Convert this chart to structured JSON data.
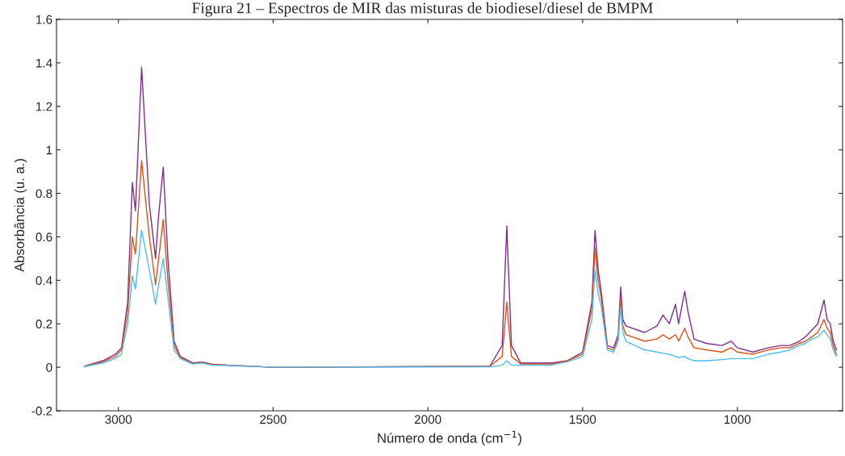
{
  "chart_data": {
    "type": "line",
    "title": "Figura 21 – Espectros de MIR das misturas de biodiesel/diesel de BMPM",
    "xlabel": "Número de onda (cm$^{−1}$)",
    "ylabel": "Absorbância (u. a.)",
    "x": [
      3110,
      3050,
      3010,
      2990,
      2970,
      2955,
      2945,
      2925,
      2900,
      2880,
      2870,
      2855,
      2840,
      2820,
      2800,
      2760,
      2730,
      2700,
      2650,
      2500,
      1800,
      1760,
      1745,
      1730,
      1700,
      1600,
      1550,
      1500,
      1470,
      1460,
      1450,
      1440,
      1420,
      1400,
      1385,
      1377,
      1370,
      1360,
      1300,
      1260,
      1240,
      1220,
      1200,
      1190,
      1170,
      1160,
      1140,
      1100,
      1050,
      1020,
      1000,
      950,
      900,
      860,
      830,
      800,
      780,
      760,
      740,
      720,
      710,
      700,
      690,
      680
    ],
    "series": [
      {
        "color": "#7e2f8e",
        "values": [
          0.005,
          0.03,
          0.06,
          0.09,
          0.3,
          0.85,
          0.72,
          1.38,
          0.75,
          0.5,
          0.7,
          0.92,
          0.5,
          0.12,
          0.05,
          0.02,
          0.025,
          0.015,
          0.01,
          0.0,
          0.005,
          0.1,
          0.65,
          0.1,
          0.02,
          0.02,
          0.03,
          0.07,
          0.3,
          0.63,
          0.45,
          0.35,
          0.1,
          0.09,
          0.15,
          0.37,
          0.22,
          0.19,
          0.16,
          0.19,
          0.24,
          0.2,
          0.29,
          0.2,
          0.35,
          0.26,
          0.13,
          0.11,
          0.1,
          0.12,
          0.09,
          0.07,
          0.09,
          0.1,
          0.1,
          0.12,
          0.14,
          0.17,
          0.2,
          0.31,
          0.22,
          0.2,
          0.12,
          0.08
        ]
      },
      {
        "color": "#d95319",
        "values": [
          0.005,
          0.025,
          0.05,
          0.08,
          0.25,
          0.6,
          0.52,
          0.95,
          0.6,
          0.38,
          0.5,
          0.68,
          0.4,
          0.1,
          0.045,
          0.018,
          0.022,
          0.013,
          0.01,
          0.0,
          0.004,
          0.05,
          0.3,
          0.05,
          0.015,
          0.015,
          0.03,
          0.06,
          0.27,
          0.55,
          0.4,
          0.32,
          0.09,
          0.08,
          0.13,
          0.32,
          0.19,
          0.15,
          0.12,
          0.13,
          0.15,
          0.13,
          0.15,
          0.12,
          0.18,
          0.14,
          0.09,
          0.08,
          0.07,
          0.09,
          0.07,
          0.06,
          0.08,
          0.09,
          0.09,
          0.11,
          0.12,
          0.14,
          0.16,
          0.22,
          0.18,
          0.16,
          0.1,
          0.06
        ]
      },
      {
        "color": "#4dbeee",
        "values": [
          0.003,
          0.02,
          0.04,
          0.06,
          0.2,
          0.42,
          0.36,
          0.63,
          0.45,
          0.29,
          0.38,
          0.5,
          0.32,
          0.08,
          0.04,
          0.015,
          0.02,
          0.01,
          0.008,
          0.0,
          0.002,
          0.01,
          0.03,
          0.01,
          0.01,
          0.01,
          0.025,
          0.05,
          0.22,
          0.45,
          0.34,
          0.28,
          0.08,
          0.07,
          0.12,
          0.28,
          0.16,
          0.12,
          0.08,
          0.07,
          0.065,
          0.06,
          0.05,
          0.045,
          0.05,
          0.04,
          0.03,
          0.03,
          0.035,
          0.04,
          0.04,
          0.04,
          0.06,
          0.07,
          0.08,
          0.1,
          0.11,
          0.13,
          0.14,
          0.17,
          0.15,
          0.13,
          0.08,
          0.05
        ]
      }
    ],
    "xlim": [
      3200,
      660
    ],
    "xticks": [
      3000,
      2500,
      2000,
      1500,
      1000
    ],
    "ylim": [
      -0.2,
      1.6
    ],
    "yticks": [
      -0.2,
      0,
      0.2,
      0.4,
      0.6,
      0.8,
      1,
      1.2,
      1.4,
      1.6
    ],
    "grid": false,
    "legend": false
  }
}
